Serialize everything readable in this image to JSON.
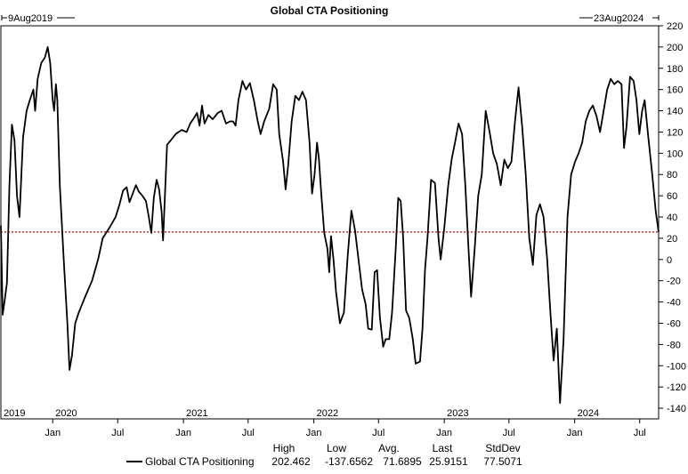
{
  "chart_data": {
    "type": "line",
    "title": "Global CTA Positioning",
    "start_label": "9Aug2019",
    "end_label": "23Aug2024",
    "xlabel": "",
    "ylabel": "",
    "x_range": [
      "2019-08-09",
      "2024-08-23"
    ],
    "ylim": [
      -150,
      220
    ],
    "y_ticks": [
      220,
      200,
      180,
      160,
      140,
      120,
      100,
      80,
      60,
      40,
      20,
      0,
      -20,
      -40,
      -60,
      -80,
      -100,
      -120,
      -140
    ],
    "month_ticks": [
      {
        "date": "2020-01-01",
        "label": "Jan"
      },
      {
        "date": "2020-07-01",
        "label": "Jul"
      },
      {
        "date": "2021-01-01",
        "label": "Jan"
      },
      {
        "date": "2021-07-01",
        "label": "Jul"
      },
      {
        "date": "2022-01-01",
        "label": "Jan"
      },
      {
        "date": "2022-07-01",
        "label": "Jul"
      },
      {
        "date": "2023-01-01",
        "label": "Jan"
      },
      {
        "date": "2023-07-01",
        "label": "Jul"
      },
      {
        "date": "2024-01-01",
        "label": "Jan"
      },
      {
        "date": "2024-07-01",
        "label": "Jul"
      }
    ],
    "year_labels": [
      {
        "date": "2019-08-09",
        "label": "2019"
      },
      {
        "date": "2020-01-01",
        "label": "2020"
      },
      {
        "date": "2021-01-01",
        "label": "2021"
      },
      {
        "date": "2022-01-01",
        "label": "2022"
      },
      {
        "date": "2023-01-01",
        "label": "2023"
      },
      {
        "date": "2024-01-01",
        "label": "2024"
      }
    ],
    "reference_line": {
      "value": 25.9151,
      "color": "#cc0000"
    },
    "grid": false,
    "legend_position": "bottom",
    "series": [
      {
        "name": "Global CTA Positioning",
        "color": "#000000",
        "points": [
          [
            "2019-08-09",
            32
          ],
          [
            "2019-08-14",
            -52
          ],
          [
            "2019-08-19",
            -40
          ],
          [
            "2019-08-26",
            -22
          ],
          [
            "2019-09-02",
            70
          ],
          [
            "2019-09-09",
            127
          ],
          [
            "2019-09-16",
            112
          ],
          [
            "2019-09-23",
            60
          ],
          [
            "2019-09-30",
            40
          ],
          [
            "2019-10-10",
            115
          ],
          [
            "2019-10-20",
            140
          ],
          [
            "2019-10-29",
            150
          ],
          [
            "2019-11-08",
            160
          ],
          [
            "2019-11-13",
            140
          ],
          [
            "2019-11-20",
            170
          ],
          [
            "2019-11-30",
            185
          ],
          [
            "2019-12-10",
            190
          ],
          [
            "2019-12-18",
            200
          ],
          [
            "2019-12-25",
            185
          ],
          [
            "2020-01-01",
            150
          ],
          [
            "2020-01-05",
            140
          ],
          [
            "2020-01-10",
            165
          ],
          [
            "2020-01-14",
            150
          ],
          [
            "2020-01-21",
            70
          ],
          [
            "2020-02-01",
            0
          ],
          [
            "2020-02-11",
            -60
          ],
          [
            "2020-02-17",
            -104
          ],
          [
            "2020-02-24",
            -90
          ],
          [
            "2020-03-04",
            -60
          ],
          [
            "2020-03-14",
            -50
          ],
          [
            "2020-04-01",
            -35
          ],
          [
            "2020-04-20",
            -20
          ],
          [
            "2020-05-07",
            0
          ],
          [
            "2020-05-20",
            20
          ],
          [
            "2020-06-08",
            30
          ],
          [
            "2020-06-25",
            40
          ],
          [
            "2020-07-06",
            52
          ],
          [
            "2020-07-16",
            65
          ],
          [
            "2020-07-26",
            68
          ],
          [
            "2020-08-03",
            54
          ],
          [
            "2020-08-12",
            62
          ],
          [
            "2020-08-21",
            70
          ],
          [
            "2020-08-29",
            64
          ],
          [
            "2020-09-08",
            60
          ],
          [
            "2020-09-18",
            55
          ],
          [
            "2020-09-26",
            40
          ],
          [
            "2020-10-03",
            25
          ],
          [
            "2020-10-10",
            58
          ],
          [
            "2020-10-18",
            75
          ],
          [
            "2020-10-25",
            66
          ],
          [
            "2020-11-01",
            45
          ],
          [
            "2020-11-05",
            18
          ],
          [
            "2020-11-09",
            50
          ],
          [
            "2020-11-16",
            108
          ],
          [
            "2020-11-26",
            112
          ],
          [
            "2020-12-10",
            118
          ],
          [
            "2020-12-27",
            122
          ],
          [
            "2021-01-10",
            120
          ],
          [
            "2021-01-20",
            128
          ],
          [
            "2021-01-28",
            132
          ],
          [
            "2021-02-08",
            138
          ],
          [
            "2021-02-15",
            126
          ],
          [
            "2021-02-22",
            145
          ],
          [
            "2021-03-01",
            128
          ],
          [
            "2021-03-12",
            136
          ],
          [
            "2021-03-24",
            132
          ],
          [
            "2021-04-07",
            138
          ],
          [
            "2021-04-18",
            140
          ],
          [
            "2021-04-30",
            128
          ],
          [
            "2021-05-11",
            130
          ],
          [
            "2021-05-20",
            130
          ],
          [
            "2021-05-27",
            126
          ],
          [
            "2021-06-04",
            150
          ],
          [
            "2021-06-15",
            168
          ],
          [
            "2021-06-25",
            160
          ],
          [
            "2021-07-06",
            166
          ],
          [
            "2021-07-17",
            150
          ],
          [
            "2021-07-28",
            130
          ],
          [
            "2021-08-05",
            118
          ],
          [
            "2021-08-15",
            130
          ],
          [
            "2021-08-29",
            142
          ],
          [
            "2021-09-09",
            165
          ],
          [
            "2021-09-19",
            160
          ],
          [
            "2021-09-26",
            118
          ],
          [
            "2021-10-07",
            92
          ],
          [
            "2021-10-14",
            66
          ],
          [
            "2021-10-21",
            88
          ],
          [
            "2021-10-31",
            130
          ],
          [
            "2021-11-10",
            154
          ],
          [
            "2021-11-20",
            150
          ],
          [
            "2021-11-30",
            158
          ],
          [
            "2021-12-10",
            150
          ],
          [
            "2021-12-20",
            110
          ],
          [
            "2021-12-27",
            62
          ],
          [
            "2022-01-03",
            80
          ],
          [
            "2022-01-10",
            110
          ],
          [
            "2022-01-15",
            95
          ],
          [
            "2022-01-22",
            60
          ],
          [
            "2022-01-30",
            25
          ],
          [
            "2022-02-08",
            10
          ],
          [
            "2022-02-13",
            -12
          ],
          [
            "2022-02-18",
            22
          ],
          [
            "2022-02-25",
            0
          ],
          [
            "2022-03-04",
            -30
          ],
          [
            "2022-03-15",
            -60
          ],
          [
            "2022-03-26",
            -50
          ],
          [
            "2022-04-06",
            5
          ],
          [
            "2022-04-16",
            46
          ],
          [
            "2022-04-26",
            28
          ],
          [
            "2022-05-06",
            0
          ],
          [
            "2022-05-16",
            -28
          ],
          [
            "2022-05-26",
            -42
          ],
          [
            "2022-06-02",
            -65
          ],
          [
            "2022-06-12",
            -66
          ],
          [
            "2022-06-20",
            -12
          ],
          [
            "2022-06-27",
            -10
          ],
          [
            "2022-07-05",
            -55
          ],
          [
            "2022-07-14",
            -82
          ],
          [
            "2022-07-21",
            -75
          ],
          [
            "2022-07-31",
            -75
          ],
          [
            "2022-08-08",
            -50
          ],
          [
            "2022-08-18",
            10
          ],
          [
            "2022-08-25",
            58
          ],
          [
            "2022-09-01",
            55
          ],
          [
            "2022-09-08",
            20
          ],
          [
            "2022-09-16",
            -48
          ],
          [
            "2022-09-25",
            -55
          ],
          [
            "2022-10-05",
            -75
          ],
          [
            "2022-10-13",
            -98
          ],
          [
            "2022-10-25",
            -96
          ],
          [
            "2022-11-01",
            -65
          ],
          [
            "2022-11-08",
            -10
          ],
          [
            "2022-11-15",
            20
          ],
          [
            "2022-11-25",
            75
          ],
          [
            "2022-12-06",
            72
          ],
          [
            "2022-12-16",
            20
          ],
          [
            "2022-12-22",
            0
          ],
          [
            "2023-01-01",
            30
          ],
          [
            "2023-01-12",
            70
          ],
          [
            "2023-01-22",
            95
          ],
          [
            "2023-01-31",
            110
          ],
          [
            "2023-02-10",
            128
          ],
          [
            "2023-02-20",
            118
          ],
          [
            "2023-03-01",
            70
          ],
          [
            "2023-03-10",
            10
          ],
          [
            "2023-03-17",
            -35
          ],
          [
            "2023-03-27",
            10
          ],
          [
            "2023-04-06",
            60
          ],
          [
            "2023-04-16",
            80
          ],
          [
            "2023-04-27",
            140
          ],
          [
            "2023-05-08",
            120
          ],
          [
            "2023-05-18",
            100
          ],
          [
            "2023-05-28",
            90
          ],
          [
            "2023-06-08",
            70
          ],
          [
            "2023-06-18",
            94
          ],
          [
            "2023-06-28",
            86
          ],
          [
            "2023-07-08",
            92
          ],
          [
            "2023-07-18",
            130
          ],
          [
            "2023-07-28",
            162
          ],
          [
            "2023-08-07",
            125
          ],
          [
            "2023-08-17",
            80
          ],
          [
            "2023-08-27",
            20
          ],
          [
            "2023-09-06",
            -5
          ],
          [
            "2023-09-16",
            42
          ],
          [
            "2023-09-26",
            52
          ],
          [
            "2023-10-06",
            40
          ],
          [
            "2023-10-16",
            0
          ],
          [
            "2023-10-25",
            -50
          ],
          [
            "2023-11-03",
            -95
          ],
          [
            "2023-11-12",
            -65
          ],
          [
            "2023-11-21",
            -135
          ],
          [
            "2023-12-01",
            -75
          ],
          [
            "2023-12-12",
            40
          ],
          [
            "2023-12-22",
            80
          ],
          [
            "2024-01-02",
            92
          ],
          [
            "2024-01-12",
            100
          ],
          [
            "2024-01-22",
            110
          ],
          [
            "2024-02-01",
            130
          ],
          [
            "2024-02-11",
            140
          ],
          [
            "2024-02-21",
            145
          ],
          [
            "2024-03-02",
            135
          ],
          [
            "2024-03-12",
            120
          ],
          [
            "2024-03-22",
            140
          ],
          [
            "2024-04-01",
            160
          ],
          [
            "2024-04-11",
            170
          ],
          [
            "2024-04-21",
            165
          ],
          [
            "2024-05-01",
            168
          ],
          [
            "2024-05-11",
            165
          ],
          [
            "2024-05-18",
            105
          ],
          [
            "2024-05-25",
            125
          ],
          [
            "2024-06-04",
            172
          ],
          [
            "2024-06-14",
            168
          ],
          [
            "2024-06-22",
            150
          ],
          [
            "2024-06-30",
            118
          ],
          [
            "2024-07-08",
            140
          ],
          [
            "2024-07-15",
            150
          ],
          [
            "2024-07-25",
            115
          ],
          [
            "2024-08-05",
            80
          ],
          [
            "2024-08-15",
            45
          ],
          [
            "2024-08-23",
            26
          ]
        ]
      }
    ]
  },
  "legend": {
    "label": "Global CTA Positioning",
    "headers": [
      "High",
      "Low",
      "Avg.",
      "Last",
      "StdDev"
    ],
    "values": [
      "202.462",
      "-137.6562",
      "71.6895",
      "25.9151",
      "77.5071"
    ]
  }
}
